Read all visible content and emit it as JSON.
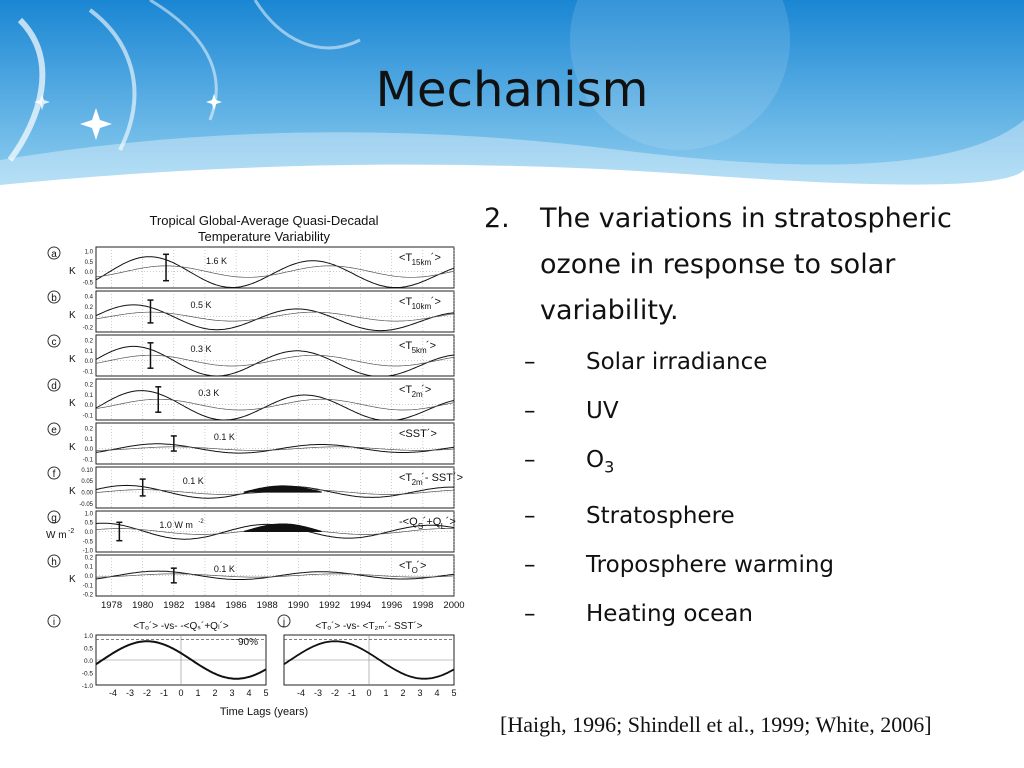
{
  "slide": {
    "title": "Mechanism",
    "citation": "[Haigh, 1996; Shindell et al., 1999; White, 2006]",
    "colors": {
      "banner_top": "#1e8fd6",
      "banner_bottom": "#8fd0f2"
    }
  },
  "bullets": {
    "main": {
      "number": "2.",
      "text": "The variations in stratospheric ozone in response to solar variability."
    },
    "sub": [
      {
        "dash": "–",
        "text": "Solar irradiance"
      },
      {
        "dash": "–",
        "text": "UV"
      },
      {
        "dash": "–",
        "text": "O",
        "sub": "3"
      },
      {
        "dash": "–",
        "text": "Stratosphere"
      },
      {
        "dash": "–",
        "text": "Troposphere warming"
      },
      {
        "dash": "–",
        "text": "Heating ocean"
      }
    ]
  },
  "chart_data": [
    {
      "type": "line",
      "title": "Tropical Global-Average Quasi-Decadal",
      "subtitle": "Temperature Variability",
      "x_ticks": [
        "1978",
        "1980",
        "1982",
        "1984",
        "1986",
        "1988",
        "1990",
        "1992",
        "1994",
        "1996",
        "1998",
        "2000"
      ],
      "xlim": [
        1977,
        2000
      ],
      "panels": [
        {
          "letter": "a",
          "ylabel": "K",
          "yticks": [
            "1.0",
            "0.5",
            "0.0",
            "-0.5"
          ],
          "ylim": [
            -0.8,
            1.2
          ],
          "amp_label": "1.6 K",
          "amplitude": 0.8,
          "phase_peak": 1980.5,
          "trend": -0.2,
          "series_label": "<T",
          "series_sub": "15km",
          "series_suffix": "´>"
        },
        {
          "letter": "b",
          "ylabel": "K",
          "yticks": [
            "0.4",
            "0.2",
            "0.0",
            "-0.2"
          ],
          "ylim": [
            -0.3,
            0.5
          ],
          "amp_label": "0.5 K",
          "amplitude": 0.25,
          "phase_peak": 1979.5,
          "trend": -0.1,
          "series_label": "<T",
          "series_sub": "10km",
          "series_suffix": "´>"
        },
        {
          "letter": "c",
          "ylabel": "K",
          "yticks": [
            "0.2",
            "0.1",
            "0.0",
            "-0.1"
          ],
          "ylim": [
            -0.15,
            0.25
          ],
          "amp_label": "0.3 K",
          "amplitude": 0.15,
          "phase_peak": 1979.5,
          "trend": -0.05,
          "series_label": "<T",
          "series_sub": "5km",
          "series_suffix": "´>"
        },
        {
          "letter": "d",
          "ylabel": "K",
          "yticks": [
            "0.2",
            "0.1",
            "0.0",
            "-0.1"
          ],
          "ylim": [
            -0.15,
            0.25
          ],
          "amp_label": "0.3 K",
          "amplitude": 0.15,
          "phase_peak": 1980,
          "trend": -0.05,
          "series_label": "<T",
          "series_sub": "2m",
          "series_suffix": "´>"
        },
        {
          "letter": "e",
          "ylabel": "K",
          "yticks": [
            "0.2",
            "0.1",
            "0.0",
            "-0.1"
          ],
          "ylim": [
            -0.15,
            0.25
          ],
          "amp_label": "0.1 K",
          "amplitude": 0.05,
          "phase_peak": 1981,
          "trend": 0.0,
          "series_label": "<SST´>",
          "series_sub": "",
          "series_suffix": ""
        },
        {
          "letter": "f",
          "ylabel": "K",
          "yticks": [
            "0.10",
            "0.05",
            "0.00",
            "-0.05"
          ],
          "ylim": [
            -0.07,
            0.11
          ],
          "amp_label": "0.1 K",
          "amplitude": 0.03,
          "phase_peak": 1979,
          "trend": 0.0,
          "fill": true,
          "series_label": "<T",
          "series_sub": "2m",
          "series_suffix": "´- SST´>"
        },
        {
          "letter": "g",
          "ylabel": "W m",
          "ylabel_sup": "-2",
          "yticks": [
            "1.0",
            "0.5",
            "0.0",
            "-0.5",
            "-1.0"
          ],
          "ylim": [
            -1.1,
            1.1
          ],
          "amp_label": "1.0 W m",
          "amp_sup": "-2",
          "amplitude": 0.45,
          "phase_peak": 1977.5,
          "trend": 0.0,
          "fill": true,
          "series_label": "-<Q",
          "series_sub": "S",
          "series_suffix": "´+Q",
          "series_sub2": "L",
          "series_suffix2": "´>"
        },
        {
          "letter": "h",
          "ylabel": "K",
          "yticks": [
            "0.2",
            "0.1",
            "0.0",
            "-0.1",
            "-0.2"
          ],
          "ylim": [
            -0.22,
            0.22
          ],
          "amp_label": "0.1 K",
          "amplitude": 0.05,
          "phase_peak": 1981,
          "trend": 0.0,
          "series_label": "<T",
          "series_sub": "O",
          "series_suffix": "´>"
        }
      ]
    },
    {
      "type": "line",
      "panel": "i",
      "title": "<Tₒ´> -vs- -<Qₛ´+Qₗ´>",
      "xlabel": "Time Lags (years)",
      "x_ticks": [
        "-4",
        "-3",
        "-2",
        "-1",
        "0",
        "1",
        "2",
        "3",
        "4",
        "5"
      ],
      "xlim": [
        -5,
        5
      ],
      "yticks": [
        "1.0",
        "0.5",
        "0.0",
        "-0.5",
        "-1.0"
      ],
      "ylim": [
        -1.0,
        1.0
      ],
      "annotation": "90%",
      "series": [
        {
          "values_desc": "cosine correlation, peak 0.75 at lag -2"
        }
      ]
    },
    {
      "type": "line",
      "panel": "j",
      "title": "<Tₒ´> -vs- <T₂ₘ´- SST´>",
      "x_ticks": [
        "-4",
        "-3",
        "-2",
        "-1",
        "0",
        "1",
        "2",
        "3",
        "4",
        "5"
      ],
      "xlim": [
        -5,
        5
      ],
      "ylim": [
        -1.0,
        1.0
      ],
      "series": [
        {
          "values_desc": "cosine correlation, peak 0.75 at lag -2"
        }
      ]
    }
  ]
}
